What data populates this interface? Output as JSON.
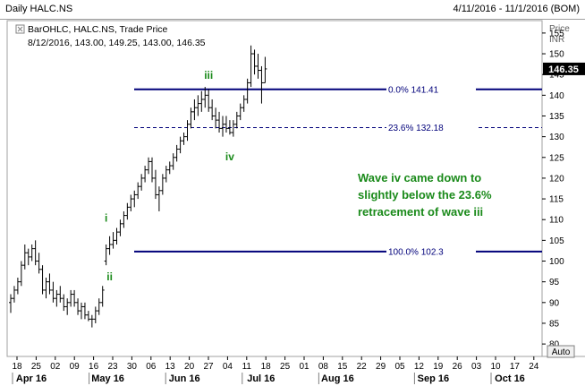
{
  "header": {
    "title": "Daily HALC.NS",
    "date_range": "4/11/2016 - 11/1/2016 (BOM)"
  },
  "legend": {
    "series_label": "BarOHLC, HALC.NS, Trade Price",
    "last_values": "8/12/2016, 143.00, 149.25, 143.00, 146.35"
  },
  "axis": {
    "y_title_1": "Price",
    "y_title_2": "INR",
    "current_price": "146.35",
    "auto_label": "Auto"
  },
  "colors": {
    "bars": "#000000",
    "fib_line": "#00007a",
    "wave_label": "#1a8a1a",
    "price_tag_bg": "#000000",
    "price_tag_fg": "#ffffff"
  },
  "chart_data": {
    "type": "bar",
    "subtype": "ohlc",
    "ylim": [
      77,
      158
    ],
    "yticks": [
      80,
      85,
      90,
      95,
      100,
      105,
      110,
      115,
      120,
      125,
      130,
      135,
      140,
      145,
      150,
      155
    ],
    "x_day_labels": [
      "18",
      "25",
      "02",
      "09",
      "16",
      "23",
      "30",
      "06",
      "13",
      "20",
      "27",
      "04",
      "11",
      "18",
      "25",
      "01",
      "08",
      "15",
      "22",
      "29",
      "05",
      "12",
      "19",
      "26",
      "03",
      "10",
      "17",
      "24"
    ],
    "x_month_labels": [
      {
        "label": "Apr 16",
        "at_day_index": 0
      },
      {
        "label": "May 16",
        "at_day_index": 4
      },
      {
        "label": "Jun 16",
        "at_day_index": 8
      },
      {
        "label": "Jul 16",
        "at_day_index": 12
      },
      {
        "label": "Aug 16",
        "at_day_index": 16
      },
      {
        "label": "Sep 16",
        "at_day_index": 21
      },
      {
        "label": "Oct 16",
        "at_day_index": 25
      }
    ],
    "fib_levels": [
      {
        "label": "0.0%",
        "value_label": "141.41",
        "value": 141.41,
        "style": "solid"
      },
      {
        "label": "23.6%",
        "value_label": "132.18",
        "value": 132.18,
        "style": "dashed"
      },
      {
        "label": "100.0%",
        "value_label": "102.3",
        "value": 102.3,
        "style": "solid"
      }
    ],
    "wave_labels": [
      {
        "label": "i",
        "at_bar": 27,
        "value": 109.5,
        "pos": "above"
      },
      {
        "label": "ii",
        "at_bar": 28,
        "value": 97.5,
        "pos": "below"
      },
      {
        "label": "iii",
        "at_bar": 56,
        "value": 144,
        "pos": "above"
      },
      {
        "label": "iv",
        "at_bar": 62,
        "value": 126.5,
        "pos": "below"
      }
    ],
    "annotation": [
      "Wave iv came down to",
      "slightly below the 23.6%",
      "retracement of wave iii"
    ],
    "bars": [
      {
        "o": 90,
        "h": 92,
        "l": 87.5,
        "c": 91
      },
      {
        "o": 91,
        "h": 94,
        "l": 90,
        "c": 93
      },
      {
        "o": 93,
        "h": 96,
        "l": 92,
        "c": 95
      },
      {
        "o": 95,
        "h": 100,
        "l": 94,
        "c": 99
      },
      {
        "o": 99,
        "h": 104,
        "l": 98,
        "c": 102
      },
      {
        "o": 102,
        "h": 103,
        "l": 99,
        "c": 101
      },
      {
        "o": 101,
        "h": 104,
        "l": 100,
        "c": 103
      },
      {
        "o": 103,
        "h": 105,
        "l": 99,
        "c": 100
      },
      {
        "o": 100,
        "h": 102,
        "l": 97,
        "c": 98
      },
      {
        "o": 98,
        "h": 99,
        "l": 92,
        "c": 93
      },
      {
        "o": 93,
        "h": 96,
        "l": 91,
        "c": 95
      },
      {
        "o": 95,
        "h": 97,
        "l": 92,
        "c": 93
      },
      {
        "o": 93,
        "h": 95,
        "l": 90,
        "c": 91
      },
      {
        "o": 91,
        "h": 93,
        "l": 89,
        "c": 92
      },
      {
        "o": 92,
        "h": 94,
        "l": 90,
        "c": 91
      },
      {
        "o": 91,
        "h": 92,
        "l": 88,
        "c": 89
      },
      {
        "o": 89,
        "h": 91,
        "l": 87,
        "c": 90
      },
      {
        "o": 90,
        "h": 93,
        "l": 89,
        "c": 92
      },
      {
        "o": 92,
        "h": 93,
        "l": 89,
        "c": 90
      },
      {
        "o": 90,
        "h": 91,
        "l": 87,
        "c": 88
      },
      {
        "o": 88,
        "h": 90,
        "l": 86,
        "c": 89
      },
      {
        "o": 89,
        "h": 90,
        "l": 86,
        "c": 87
      },
      {
        "o": 87,
        "h": 88,
        "l": 85.5,
        "c": 86
      },
      {
        "o": 86,
        "h": 87,
        "l": 84,
        "c": 86
      },
      {
        "o": 86,
        "h": 89,
        "l": 85,
        "c": 88
      },
      {
        "o": 88,
        "h": 91,
        "l": 87,
        "c": 90
      },
      {
        "o": 90,
        "h": 94,
        "l": 89,
        "c": 93
      },
      {
        "o": 100,
        "h": 104,
        "l": 99,
        "c": 103
      },
      {
        "o": 103,
        "h": 106,
        "l": 101.5,
        "c": 104
      },
      {
        "o": 104,
        "h": 107,
        "l": 103,
        "c": 105
      },
      {
        "o": 105,
        "h": 108,
        "l": 104,
        "c": 107
      },
      {
        "o": 107,
        "h": 110,
        "l": 106,
        "c": 109
      },
      {
        "o": 109,
        "h": 112,
        "l": 108,
        "c": 111
      },
      {
        "o": 111,
        "h": 114,
        "l": 110,
        "c": 113
      },
      {
        "o": 113,
        "h": 116,
        "l": 112,
        "c": 115
      },
      {
        "o": 115,
        "h": 117,
        "l": 113,
        "c": 116
      },
      {
        "o": 116,
        "h": 119,
        "l": 115,
        "c": 118
      },
      {
        "o": 118,
        "h": 121,
        "l": 117,
        "c": 120
      },
      {
        "o": 120,
        "h": 123,
        "l": 119,
        "c": 122
      },
      {
        "o": 122,
        "h": 125,
        "l": 121,
        "c": 124
      },
      {
        "o": 124,
        "h": 125,
        "l": 119,
        "c": 120
      },
      {
        "o": 120,
        "h": 122,
        "l": 115,
        "c": 116
      },
      {
        "o": 116,
        "h": 118,
        "l": 112,
        "c": 117
      },
      {
        "o": 117,
        "h": 121,
        "l": 116,
        "c": 120
      },
      {
        "o": 120,
        "h": 123,
        "l": 119,
        "c": 122
      },
      {
        "o": 122,
        "h": 124,
        "l": 121,
        "c": 123
      },
      {
        "o": 123,
        "h": 126,
        "l": 122,
        "c": 125
      },
      {
        "o": 125,
        "h": 128,
        "l": 124,
        "c": 127
      },
      {
        "o": 127,
        "h": 130,
        "l": 126,
        "c": 129
      },
      {
        "o": 129,
        "h": 131,
        "l": 128,
        "c": 130
      },
      {
        "o": 130,
        "h": 134,
        "l": 129,
        "c": 133
      },
      {
        "o": 133,
        "h": 137,
        "l": 132,
        "c": 136
      },
      {
        "o": 136,
        "h": 139,
        "l": 134,
        "c": 137
      },
      {
        "o": 137,
        "h": 140,
        "l": 135,
        "c": 138
      },
      {
        "o": 138,
        "h": 141,
        "l": 136,
        "c": 139
      },
      {
        "o": 139,
        "h": 142,
        "l": 137,
        "c": 140
      },
      {
        "o": 140,
        "h": 141.5,
        "l": 136,
        "c": 137
      },
      {
        "o": 137,
        "h": 139,
        "l": 134,
        "c": 135
      },
      {
        "o": 135,
        "h": 137,
        "l": 132,
        "c": 134
      },
      {
        "o": 134,
        "h": 136,
        "l": 131,
        "c": 132
      },
      {
        "o": 132,
        "h": 135,
        "l": 130,
        "c": 133
      },
      {
        "o": 133,
        "h": 135,
        "l": 131,
        "c": 132
      },
      {
        "o": 132,
        "h": 134,
        "l": 130.5,
        "c": 131
      },
      {
        "o": 131,
        "h": 134,
        "l": 130,
        "c": 133
      },
      {
        "o": 133,
        "h": 136,
        "l": 132,
        "c": 135
      },
      {
        "o": 135,
        "h": 138,
        "l": 134,
        "c": 137
      },
      {
        "o": 137,
        "h": 140,
        "l": 136,
        "c": 139
      },
      {
        "o": 139,
        "h": 144,
        "l": 138,
        "c": 143
      },
      {
        "o": 143,
        "h": 152,
        "l": 142,
        "c": 150
      },
      {
        "o": 150,
        "h": 151,
        "l": 145,
        "c": 147
      },
      {
        "o": 147,
        "h": 150,
        "l": 144,
        "c": 146
      },
      {
        "o": 146,
        "h": 147,
        "l": 138,
        "c": 143
      },
      {
        "o": 143,
        "h": 149.25,
        "l": 143,
        "c": 146.35
      }
    ]
  }
}
